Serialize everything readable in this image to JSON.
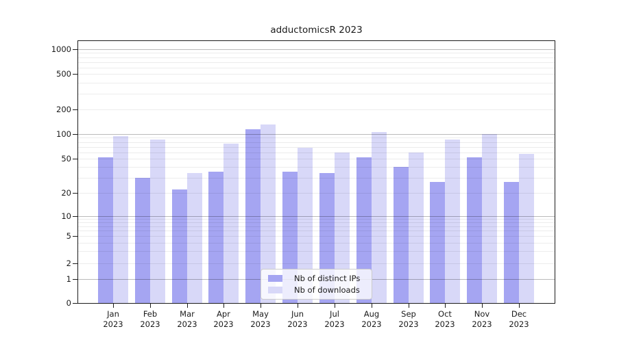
{
  "title": "adductomicsR 2023",
  "chart_data": {
    "type": "bar",
    "title": "adductomicsR 2023",
    "categories": [
      "Jan 2023",
      "Feb 2023",
      "Mar 2023",
      "Apr 2023",
      "May 2023",
      "Jun 2023",
      "Jul 2023",
      "Aug 2023",
      "Sep 2023",
      "Oct 2023",
      "Nov 2023",
      "Dec 2023"
    ],
    "x_month_labels": [
      "Jan",
      "Feb",
      "Mar",
      "Apr",
      "May",
      "Jun",
      "Jul",
      "Aug",
      "Sep",
      "Oct",
      "Nov",
      "Dec"
    ],
    "x_year_label": "2023",
    "series": [
      {
        "name": "Nb of distinct IPs",
        "color": "#a5a5f2",
        "values": [
          52,
          30,
          22,
          35,
          115,
          35,
          34,
          52,
          40,
          27,
          52,
          27
        ]
      },
      {
        "name": "Nb of downloads",
        "color": "#d8d8f8",
        "values": [
          95,
          86,
          34,
          76,
          130,
          68,
          60,
          106,
          60,
          85,
          100,
          57
        ]
      }
    ],
    "yscale": "log-like",
    "yticks": [
      0,
      1,
      2,
      5,
      10,
      20,
      50,
      100,
      200,
      500,
      1000
    ],
    "major_grid_values": [
      1,
      10,
      100,
      1000
    ],
    "minor_grid_values": [
      2,
      3,
      4,
      5,
      6,
      7,
      8,
      9,
      20,
      30,
      40,
      50,
      60,
      70,
      80,
      90,
      200,
      300,
      400,
      500,
      600,
      700,
      800,
      900
    ],
    "grid": true,
    "legend_position": "lower center",
    "axis_color": "#1a1a1a"
  }
}
